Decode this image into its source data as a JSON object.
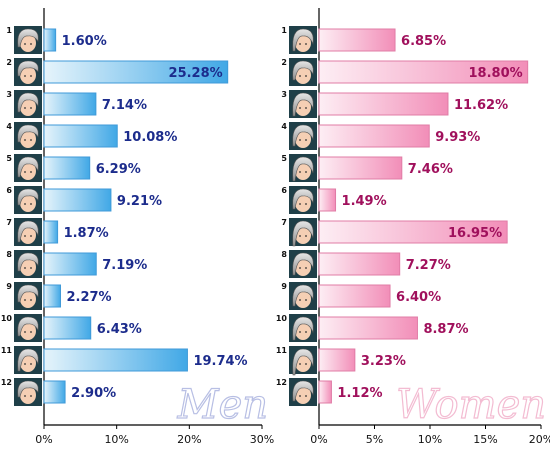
{
  "chart_data": [
    {
      "type": "bar",
      "orientation": "horizontal",
      "watermark": "Men",
      "categories": [
        "1",
        "2",
        "3",
        "4",
        "5",
        "6",
        "7",
        "8",
        "9",
        "10",
        "11",
        "12"
      ],
      "values": [
        1.6,
        25.28,
        7.14,
        10.08,
        6.29,
        9.21,
        1.87,
        7.19,
        2.27,
        6.43,
        19.74,
        2.9
      ],
      "value_labels": [
        "1.60%",
        "25.28%",
        "7.14%",
        "10.08%",
        "6.29%",
        "9.21%",
        "1.87%",
        "7.19%",
        "2.27%",
        "6.43%",
        "19.74%",
        "2.90%"
      ],
      "xlim": [
        0,
        30
      ],
      "ticks": [
        "0%",
        "10%",
        "20%",
        "30%"
      ],
      "colors": {
        "bar_light": "#e6f4fb",
        "bar_dark": "#41a8e6",
        "bar_edge": "#3f9ad8",
        "label": "#1c2c8c",
        "watermark": "#b8bfe4"
      }
    },
    {
      "type": "bar",
      "orientation": "horizontal",
      "watermark": "Women",
      "categories": [
        "1",
        "2",
        "3",
        "4",
        "5",
        "6",
        "7",
        "8",
        "9",
        "10",
        "11",
        "12"
      ],
      "values": [
        6.85,
        18.8,
        11.62,
        9.93,
        7.46,
        1.49,
        16.95,
        7.27,
        6.4,
        8.87,
        3.23,
        1.12
      ],
      "value_labels": [
        "6.85%",
        "18.80%",
        "11.62%",
        "9.93%",
        "7.46%",
        "1.49%",
        "16.95%",
        "7.27%",
        "6.40%",
        "8.87%",
        "3.23%",
        "1.12%"
      ],
      "xlim": [
        0,
        20
      ],
      "ticks": [
        "0%",
        "5%",
        "10%",
        "15%",
        "20%"
      ],
      "colors": {
        "bar_light": "#fdeef4",
        "bar_dark": "#f28eb8",
        "bar_edge": "#e07ca6",
        "label": "#a0105c",
        "watermark": "#f3bcd2"
      }
    }
  ]
}
